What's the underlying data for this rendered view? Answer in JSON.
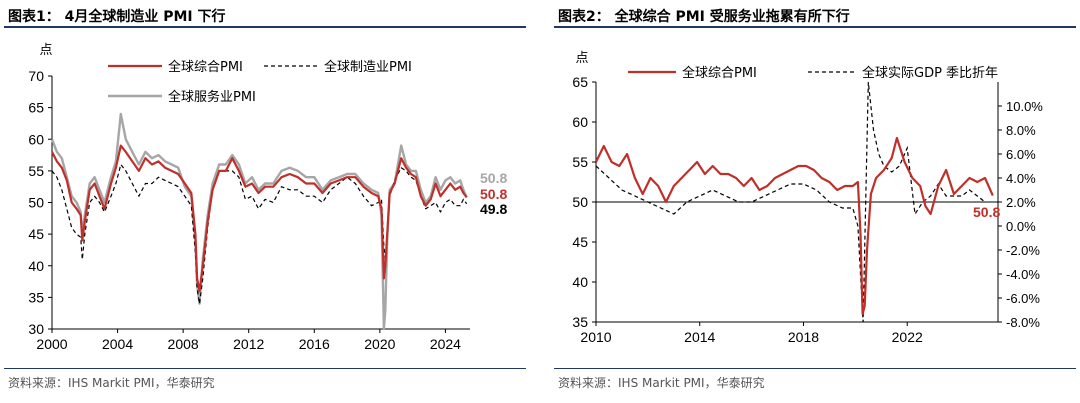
{
  "colors": {
    "composite": "#c0302b",
    "services": "#a6a6a6",
    "manufacturing": "#000000",
    "gdp": "#000000",
    "rule": "#1f3864"
  },
  "chart_data": [
    {
      "type": "line",
      "title": "图表1： 4月全球制造业 PMI 下行",
      "ylabel": "点",
      "ylim": [
        30,
        70
      ],
      "yticks": [
        30,
        35,
        40,
        45,
        50,
        55,
        60,
        65,
        70
      ],
      "xlim": [
        2000,
        2025.5
      ],
      "xticks": [
        2000,
        2004,
        2008,
        2012,
        2016,
        2020,
        2024
      ],
      "legend": [
        "全球综合PMI",
        "全球制造业PMI",
        "全球服务业PMI"
      ],
      "end_labels": [
        {
          "series": "全球服务业PMI",
          "value": "50.8"
        },
        {
          "series": "全球综合PMI",
          "value": "50.8"
        },
        {
          "series": "全球制造业PMI",
          "value": "49.8"
        }
      ],
      "series": [
        {
          "name": "全球综合PMI",
          "style": "solid",
          "x": [
            2000,
            2000.3,
            2000.6,
            2000.9,
            2001.2,
            2001.5,
            2001.75,
            2001.85,
            2002,
            2002.3,
            2002.6,
            2002.9,
            2003.2,
            2003.6,
            2003.9,
            2004.2,
            2004.5,
            2004.9,
            2005.3,
            2005.7,
            2006.1,
            2006.5,
            2006.9,
            2007.3,
            2007.7,
            2008.1,
            2008.5,
            2008.75,
            2008.85,
            2009.0,
            2009.2,
            2009.5,
            2009.8,
            2010.2,
            2010.6,
            2011.0,
            2011.4,
            2011.8,
            2012.2,
            2012.6,
            2013.0,
            2013.5,
            2014.0,
            2014.5,
            2015.0,
            2015.5,
            2016.0,
            2016.5,
            2017.0,
            2017.5,
            2018.0,
            2018.5,
            2019.0,
            2019.5,
            2019.9,
            2020.1,
            2020.25,
            2020.33,
            2020.45,
            2020.6,
            2020.9,
            2021.3,
            2021.6,
            2021.9,
            2022.2,
            2022.5,
            2022.8,
            2023.1,
            2023.4,
            2023.7,
            2024.0,
            2024.3,
            2024.6,
            2024.9,
            2025.1,
            2025.3
          ],
          "y": [
            58,
            56.5,
            55.5,
            53.5,
            50,
            49,
            48,
            44,
            47,
            52,
            53,
            51,
            49,
            53,
            55.5,
            59,
            58,
            56.5,
            55,
            57,
            56,
            56.5,
            55.5,
            55,
            54.5,
            53,
            51.5,
            45,
            38,
            36,
            40,
            47,
            52,
            55,
            55,
            57,
            55,
            52.5,
            53,
            51.5,
            52.5,
            52.5,
            54,
            54.5,
            54,
            53,
            53,
            51.5,
            53,
            53.5,
            54,
            54,
            52.5,
            51.5,
            51,
            49,
            38,
            40,
            45,
            51.5,
            53,
            57,
            55.5,
            54.5,
            54,
            51,
            49.5,
            50.5,
            53,
            51,
            52,
            53,
            52,
            52.5,
            51.5,
            50.8
          ]
        },
        {
          "name": "全球制造业PMI",
          "style": "dashed",
          "x": [
            2000,
            2000.3,
            2000.6,
            2000.9,
            2001.2,
            2001.5,
            2001.75,
            2001.85,
            2002,
            2002.3,
            2002.6,
            2002.9,
            2003.2,
            2003.6,
            2003.9,
            2004.2,
            2004.5,
            2004.9,
            2005.3,
            2005.7,
            2006.1,
            2006.5,
            2006.9,
            2007.3,
            2007.7,
            2008.1,
            2008.5,
            2008.75,
            2008.85,
            2009.0,
            2009.2,
            2009.5,
            2009.8,
            2010.2,
            2010.6,
            2011.0,
            2011.4,
            2011.8,
            2012.2,
            2012.6,
            2013.0,
            2013.5,
            2014.0,
            2014.5,
            2015.0,
            2015.5,
            2016.0,
            2016.5,
            2017.0,
            2017.5,
            2018.0,
            2018.5,
            2019.0,
            2019.5,
            2019.9,
            2020.1,
            2020.25,
            2020.33,
            2020.45,
            2020.6,
            2020.9,
            2021.3,
            2021.6,
            2021.9,
            2022.2,
            2022.5,
            2022.8,
            2023.1,
            2023.4,
            2023.7,
            2024.0,
            2024.3,
            2024.6,
            2024.9,
            2025.1,
            2025.3
          ],
          "y": [
            55,
            54,
            52,
            49,
            46,
            45,
            44.5,
            41,
            45,
            50,
            51,
            50,
            48.5,
            51,
            53,
            56,
            55,
            53,
            51,
            53,
            53,
            54,
            53.5,
            53,
            52.5,
            51,
            49.5,
            42,
            36.5,
            34,
            38,
            46,
            52,
            55,
            55,
            55,
            54,
            50.5,
            51,
            49,
            50.5,
            50,
            52.5,
            52,
            52,
            51,
            51,
            50,
            52,
            53,
            54,
            53,
            51,
            49.5,
            50,
            50.5,
            43,
            41,
            45,
            51,
            53.5,
            55.5,
            55,
            54,
            53.5,
            51,
            49,
            49.5,
            50,
            48.5,
            50,
            50.5,
            49.5,
            49.5,
            50.5,
            49.8
          ]
        },
        {
          "name": "全球服务业PMI",
          "style": "solid",
          "x": [
            2000,
            2000.3,
            2000.6,
            2000.9,
            2001.2,
            2001.5,
            2001.75,
            2001.85,
            2002,
            2002.3,
            2002.6,
            2002.9,
            2003.2,
            2003.6,
            2003.9,
            2004.2,
            2004.5,
            2004.9,
            2005.3,
            2005.7,
            2006.1,
            2006.5,
            2006.9,
            2007.3,
            2007.7,
            2008.1,
            2008.5,
            2008.75,
            2008.85,
            2009.0,
            2009.2,
            2009.5,
            2009.8,
            2010.2,
            2010.6,
            2011.0,
            2011.4,
            2011.8,
            2012.2,
            2012.6,
            2013.0,
            2013.5,
            2014.0,
            2014.5,
            2015.0,
            2015.5,
            2016.0,
            2016.5,
            2017.0,
            2017.5,
            2018.0,
            2018.5,
            2019.0,
            2019.5,
            2019.9,
            2020.1,
            2020.25,
            2020.33,
            2020.45,
            2020.6,
            2020.9,
            2021.3,
            2021.6,
            2021.9,
            2022.2,
            2022.5,
            2022.8,
            2023.1,
            2023.4,
            2023.7,
            2024.0,
            2024.3,
            2024.6,
            2024.9,
            2025.1,
            2025.3
          ],
          "y": [
            60,
            58,
            57,
            54,
            51,
            50,
            48.5,
            45,
            48,
            53,
            54,
            52,
            50,
            54,
            56.5,
            64,
            60,
            58,
            56,
            58,
            57,
            57.5,
            56.5,
            56,
            55.5,
            52.5,
            51,
            44,
            37,
            34,
            41,
            48,
            53,
            56,
            56,
            57.5,
            56,
            53,
            54,
            52,
            53,
            53,
            55,
            55.5,
            55,
            54,
            54,
            52,
            53.5,
            54,
            54.5,
            54.5,
            53,
            52,
            51.5,
            48,
            30,
            33,
            44,
            52,
            53,
            59,
            56,
            55,
            55,
            52,
            50,
            51,
            54,
            52,
            53.5,
            54,
            53,
            53.5,
            52,
            50.8
          ]
        }
      ]
    },
    {
      "type": "line",
      "title": "图表2： 全球综合 PMI 受服务业拖累有所下行",
      "ylabel": "点",
      "ylim": [
        35,
        65
      ],
      "yticks": [
        35,
        40,
        45,
        50,
        55,
        60,
        65
      ],
      "y2lim": [
        -8,
        12
      ],
      "y2ticks": [
        "-8.0%",
        "-6.0%",
        "-4.0%",
        "-2.0%",
        "0.0%",
        "2.0%",
        "4.0%",
        "6.0%",
        "8.0%",
        "10.0%"
      ],
      "xlim": [
        2010,
        2025.5
      ],
      "xticks": [
        2010,
        2014,
        2018,
        2022
      ],
      "hline": 50,
      "legend": [
        "全球综合PMI",
        "全球实际GDP 季比折年"
      ],
      "end_labels": [
        {
          "series": "全球综合PMI",
          "value": "50.8"
        }
      ],
      "series": [
        {
          "name": "全球综合PMI",
          "axis": "left",
          "style": "solid",
          "x": [
            2010,
            2010.3,
            2010.6,
            2010.9,
            2011.2,
            2011.5,
            2011.8,
            2012.1,
            2012.4,
            2012.7,
            2013.0,
            2013.3,
            2013.6,
            2013.9,
            2014.2,
            2014.5,
            2014.8,
            2015.1,
            2015.4,
            2015.7,
            2016.0,
            2016.3,
            2016.6,
            2016.9,
            2017.2,
            2017.5,
            2017.8,
            2018.1,
            2018.4,
            2018.7,
            2019.0,
            2019.3,
            2019.6,
            2019.9,
            2020.1,
            2020.2,
            2020.28,
            2020.36,
            2020.45,
            2020.6,
            2020.8,
            2021.1,
            2021.4,
            2021.6,
            2021.9,
            2022.2,
            2022.5,
            2022.7,
            2022.9,
            2023.2,
            2023.5,
            2023.8,
            2024.1,
            2024.4,
            2024.7,
            2025.0,
            2025.3
          ],
          "y": [
            55,
            57,
            55,
            54.5,
            56,
            53,
            51,
            53,
            52,
            50,
            52,
            53,
            54,
            55,
            53.5,
            54.5,
            53.5,
            53.5,
            53,
            52,
            53,
            51.5,
            52,
            53,
            53.5,
            54,
            54.5,
            54.5,
            54,
            53,
            52.5,
            51.5,
            52,
            52,
            52.5,
            46,
            36,
            37,
            44,
            51,
            53,
            54,
            55.5,
            58,
            55,
            53,
            52,
            49.5,
            48.5,
            52,
            54,
            51,
            52,
            53,
            52.5,
            53,
            50.8
          ]
        },
        {
          "name": "全球实际GDP 季比折年",
          "axis": "right",
          "style": "dashed",
          "x": [
            2010,
            2010.5,
            2011,
            2011.5,
            2012,
            2012.5,
            2013,
            2013.5,
            2014,
            2014.5,
            2015,
            2015.5,
            2016,
            2016.5,
            2017,
            2017.5,
            2018,
            2018.5,
            2019,
            2019.5,
            2019.9,
            2020.1,
            2020.3,
            2020.5,
            2020.7,
            2020.9,
            2021.1,
            2021.4,
            2021.7,
            2022.0,
            2022.3,
            2022.6,
            2022.9,
            2023.2,
            2023.5,
            2023.8,
            2024.1,
            2024.4,
            2024.7,
            2025.0
          ],
          "y": [
            5,
            4,
            3,
            2.5,
            2,
            1.5,
            1,
            2,
            2.5,
            3,
            2.5,
            2,
            2,
            2.5,
            3,
            3.5,
            3.5,
            3,
            2,
            1.5,
            1.5,
            0,
            -8,
            12,
            8,
            6,
            5,
            4.5,
            5,
            6.5,
            1,
            2,
            2.5,
            3.5,
            2.5,
            2.5,
            2.5,
            3,
            2.5,
            2
          ]
        }
      ]
    }
  ],
  "panel_left": {
    "source": "资料来源：IHS Markit PMI，华泰研究"
  },
  "panel_right": {
    "source": "资料来源：IHS Markit PMI，华泰研究"
  }
}
